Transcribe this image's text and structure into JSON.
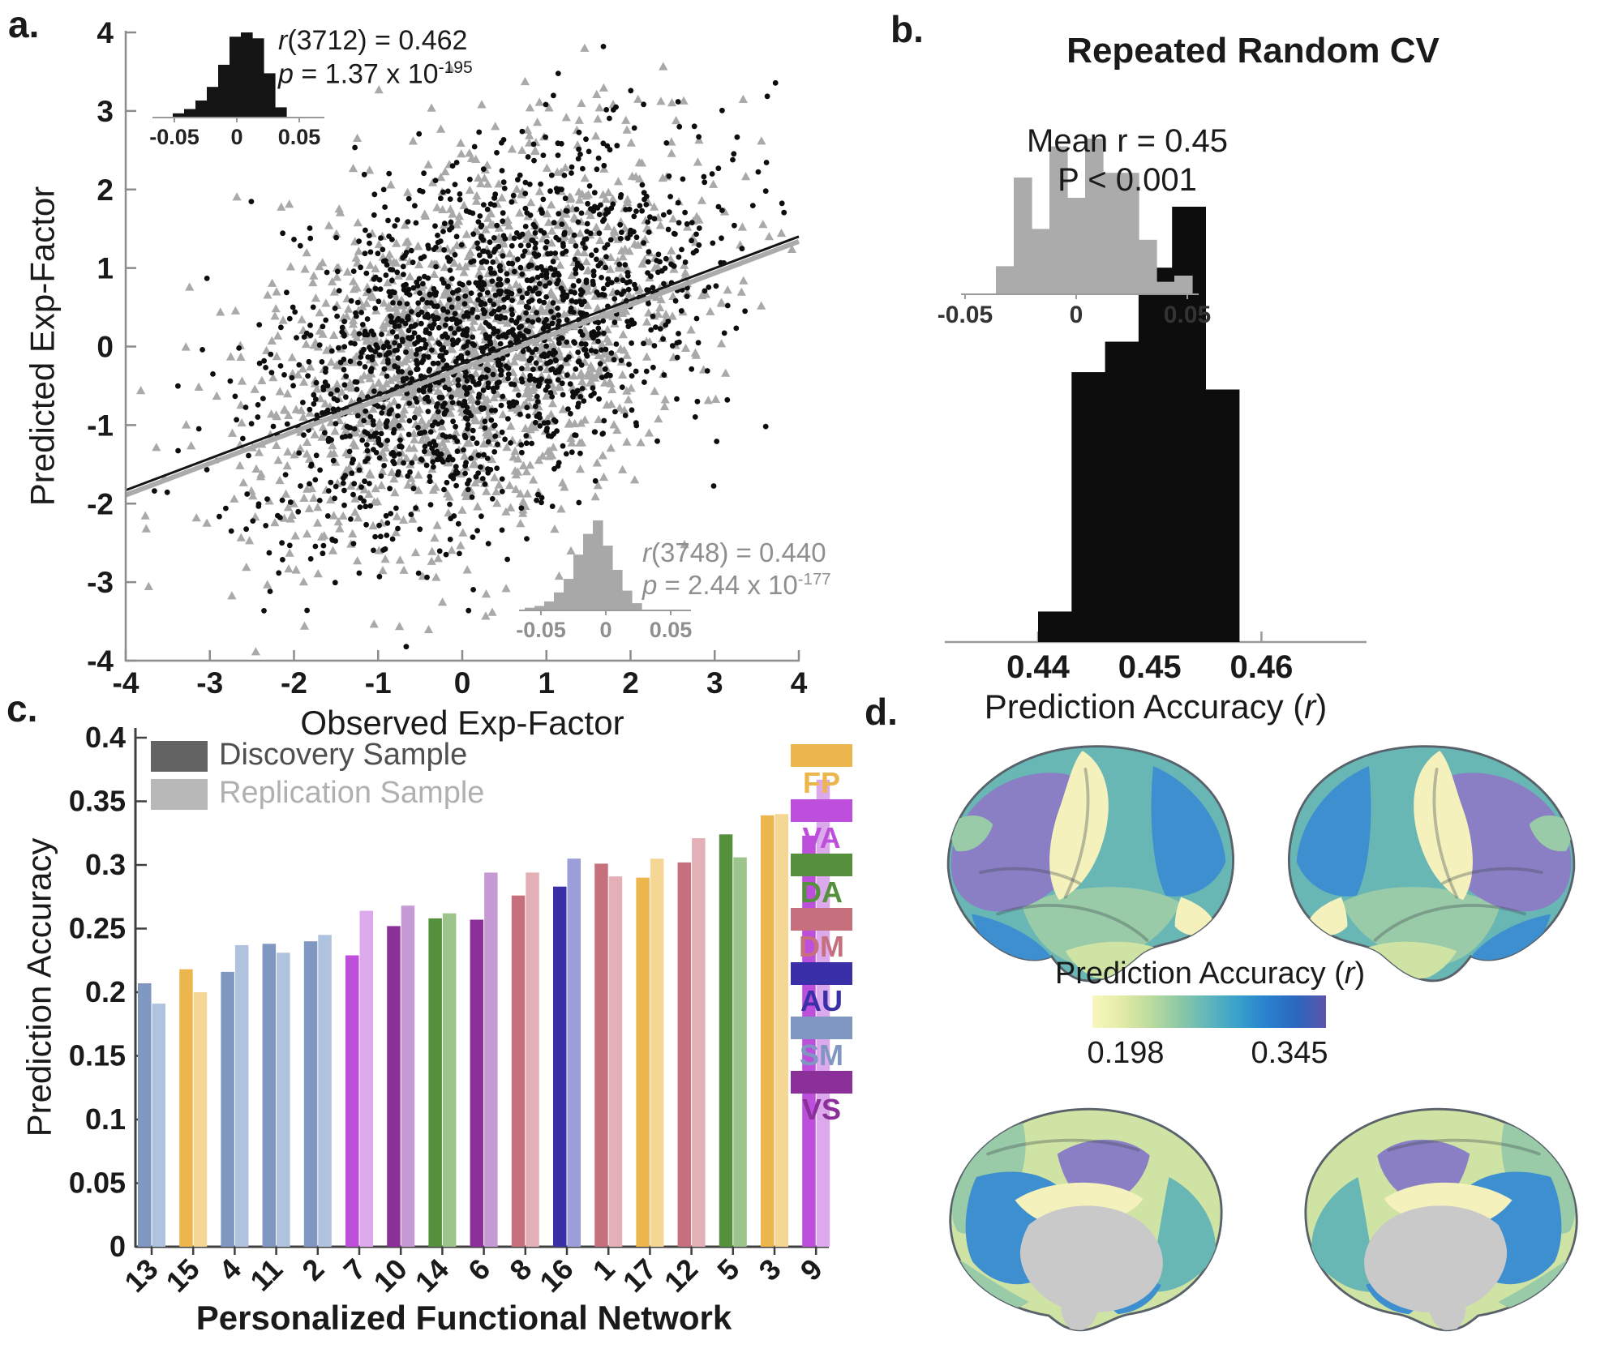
{
  "panels": {
    "a": {
      "label": "a.",
      "xlabel": "Observed Exp-Factor",
      "ylabel": "Predicted Exp-Factor",
      "discovery_stats": {
        "r_italic": "r",
        "r_rest": "(3712) = 0.462",
        "p_italic": "p",
        "p_rest": " = 1.37 x 10",
        "p_exponent": "-195"
      },
      "replication_stats": {
        "r_italic": "r",
        "r_rest": "(3748) = 0.440",
        "p_italic": "p",
        "p_rest": " = 2.44 x 10",
        "p_exponent": "-177"
      }
    },
    "b": {
      "label": "b.",
      "title": "Repeated Random CV",
      "annotation_line1": "Mean r = 0.45",
      "annotation_line2": "P < 0.001",
      "xlabel_pre": "Prediction Accuracy (",
      "xlabel_italic": "r",
      "xlabel_post": ")"
    },
    "c": {
      "label": "c.",
      "xlabel": "Personalized Functional Network",
      "ylabel": "Prediction Accuracy"
    },
    "d": {
      "label": "d.",
      "colorbar_title_pre": "Prediction Accuracy (",
      "colorbar_title_italic": "r",
      "colorbar_title_post": ")",
      "colorbar_min": "0.198",
      "colorbar_max": "0.345"
    }
  },
  "chart_data": [
    {
      "id": "a",
      "type": "scatter",
      "xlabel": "Observed Exp-Factor",
      "ylabel": "Predicted Exp-Factor",
      "xlim": [
        -4,
        4
      ],
      "ylim": [
        -4,
        4
      ],
      "xtick_labels": [
        "-4",
        "-3",
        "-2",
        "-1",
        "0",
        "1",
        "2",
        "3",
        "4"
      ],
      "ytick_labels": [
        "4",
        "3",
        "2",
        "1",
        "0",
        "-1",
        "-2",
        "-3",
        "-4"
      ],
      "series": [
        {
          "name": "Discovery Sample",
          "marker": "circle",
          "color": "#0D0D0D",
          "n_stat": 3712,
          "r": 0.462,
          "p": "1.37e-195",
          "n_render": 1650,
          "seed": 42,
          "x_mean": 0.2,
          "x_sd": 1.3,
          "slope": 0.42,
          "noise_sd": 1.08
        },
        {
          "name": "Replication Sample",
          "marker": "triangle",
          "color": "#A9A9A9",
          "n_stat": 3748,
          "r": 0.44,
          "p": "2.44e-177",
          "n_render": 1600,
          "seed": 7,
          "x_mean": 0.15,
          "x_sd": 1.32,
          "slope": 0.4,
          "noise_sd": 1.12
        }
      ],
      "fit_line": {
        "x0": -4,
        "y0": -1.85,
        "x1": 4,
        "y1": 1.38
      },
      "insets": [
        {
          "id": "discovery-null",
          "color": "#141414",
          "tick_labels": [
            "-0.05",
            "0",
            "0.05"
          ],
          "heights_norm": [
            0.05,
            0.1,
            0.2,
            0.36,
            0.62,
            0.95,
            1.0,
            0.93,
            0.52,
            0.12
          ]
        },
        {
          "id": "replication-null",
          "color": "#A8A8A8",
          "tick_labels": [
            "-0.05",
            "0",
            "0.05"
          ],
          "heights_norm": [
            0.03,
            0.05,
            0.1,
            0.2,
            0.35,
            0.62,
            0.85,
            1.0,
            0.72,
            0.45,
            0.22,
            0.08
          ]
        }
      ]
    },
    {
      "id": "b",
      "type": "histogram",
      "title": "Repeated Random CV",
      "xlabel": "Prediction Accuracy (r)",
      "mean_r": 0.45,
      "p_value": "P < 0.001",
      "xtick_labels": [
        "0.44",
        "0.45",
        "0.46"
      ],
      "xtick_values": [
        0.44,
        0.45,
        0.46
      ],
      "bars": {
        "bin_start": 0.44,
        "bin_width": 0.003,
        "heights_norm": [
          0.07,
          0.62,
          0.69,
          0.86,
          1.0,
          0.58
        ]
      },
      "color": "#0D0D0D",
      "inset": {
        "id": "cv-null",
        "color": "#ABABAB",
        "tick_labels": [
          "-0.05",
          "0",
          "0.05"
        ],
        "heights_norm": [
          0.18,
          0.75,
          0.42,
          0.95,
          0.62,
          1.0,
          0.78,
          0.78,
          0.35,
          0.08,
          0.12
        ]
      }
    },
    {
      "id": "c",
      "type": "bar",
      "xlabel": "Personalized Functional Network",
      "ylabel": "Prediction Accuracy",
      "ylim": [
        0,
        0.4
      ],
      "ytick_labels": [
        "0",
        "0.05",
        "0.1",
        "0.15",
        "0.2",
        "0.25",
        "0.3",
        "0.35",
        "0.4"
      ],
      "ytick_values": [
        0,
        0.05,
        0.1,
        0.15,
        0.2,
        0.25,
        0.3,
        0.35,
        0.4
      ],
      "categories": [
        "13",
        "15",
        "4",
        "11",
        "2",
        "7",
        "10",
        "14",
        "6",
        "8",
        "16",
        "1",
        "17",
        "12",
        "5",
        "3",
        "9"
      ],
      "category_networks": [
        "SM",
        "FP",
        "SM",
        "SM",
        "SM",
        "VA",
        "VS",
        "DA",
        "VS",
        "DM",
        "AU",
        "DM",
        "FP",
        "DM",
        "DA",
        "FP",
        "VA"
      ],
      "series": [
        {
          "name": "Discovery Sample",
          "values": [
            0.207,
            0.218,
            0.216,
            0.238,
            0.24,
            0.229,
            0.252,
            0.258,
            0.257,
            0.276,
            0.283,
            0.301,
            0.29,
            0.302,
            0.324,
            0.339,
            0.323
          ]
        },
        {
          "name": "Replication Sample",
          "values": [
            0.191,
            0.2,
            0.237,
            0.231,
            0.245,
            0.264,
            0.268,
            0.262,
            0.294,
            0.294,
            0.305,
            0.291,
            0.305,
            0.321,
            0.306,
            0.34,
            0.367
          ]
        }
      ],
      "legend": [
        {
          "label": "Discovery Sample",
          "swatch_color": "#636363",
          "text_color": "#4F4F4F"
        },
        {
          "label": "Replication Sample",
          "swatch_color": "#B8B8B8",
          "text_color": "#B0B0B0"
        }
      ],
      "networks": [
        {
          "id": "FP",
          "color": "#ECB64D",
          "light": "#F5D795"
        },
        {
          "id": "VA",
          "color": "#BE4EDC",
          "light": "#DCA9EC"
        },
        {
          "id": "DA",
          "color": "#55913C",
          "light": "#9DC48C"
        },
        {
          "id": "DM",
          "color": "#C7707D",
          "light": "#E3B0B8"
        },
        {
          "id": "AU",
          "color": "#392FA6",
          "light": "#9B9ED8"
        },
        {
          "id": "SM",
          "color": "#8097C2",
          "light": "#AFC2DE"
        },
        {
          "id": "VS",
          "color": "#8C3099",
          "light": "#C69BD5"
        }
      ]
    },
    {
      "id": "d",
      "type": "heatmap",
      "description": "Prediction accuracy mapped on four inflated brain surfaces (lateral left, lateral right, medial left, medial right)",
      "colorbar": {
        "title": "Prediction Accuracy (r)",
        "min": 0.198,
        "max": 0.345,
        "gradient": [
          "#F9F7BE",
          "#E3EBA6",
          "#BBDB9E",
          "#8CC8A6",
          "#5FB6BB",
          "#37A0CC",
          "#2980CE",
          "#2C66BD",
          "#5D55AC"
        ]
      },
      "palette": {
        "pale_yellow": "#F4F1BC",
        "light_green": "#CFE3A4",
        "seafoam": "#9ACBA8",
        "teal": "#69B7B4",
        "blue": "#3E8FD0",
        "deep_blue": "#2E79C8",
        "purple": "#8A7FC4",
        "gray": "#C9C9C9"
      }
    }
  ]
}
